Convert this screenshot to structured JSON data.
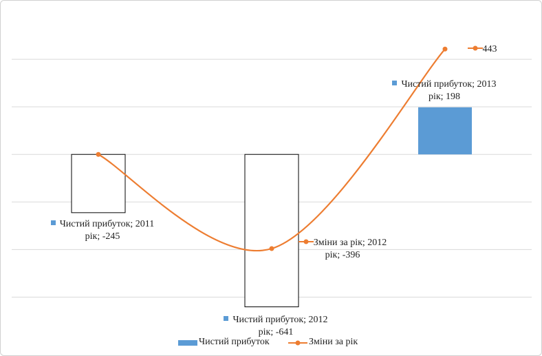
{
  "chart_data": {
    "type": "bar-line",
    "categories": [
      null,
      null,
      null
    ],
    "series": [
      {
        "name": "Чистий прибуток",
        "type": "bar",
        "color": "#5b9bd5",
        "values": [
          -245,
          -641,
          198
        ],
        "value_labels": [
          "Чистий прибуток; 2011 рік; -245",
          "Чистий прибуток; 2012 рік; -641",
          "Чистий прибуток; 2013 рік; 198"
        ]
      },
      {
        "name": "Зміни за рік",
        "type": "line",
        "color": "#ed7d31",
        "values": [
          0,
          -396,
          443
        ],
        "value_labels": [
          null,
          "Зміни за рік; 2012 рік; -396",
          "443"
        ]
      }
    ],
    "ylim": [
      -700,
      600
    ],
    "yticks": [
      -600,
      -400,
      -200,
      0,
      200,
      400
    ],
    "grid": true,
    "legend": "bottom"
  }
}
